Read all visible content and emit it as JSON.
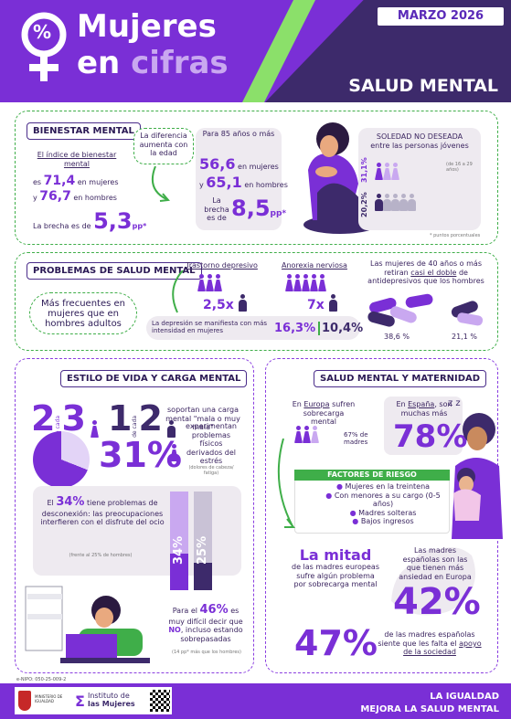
{
  "header": {
    "date": "MARZO 2026",
    "title_line1": "Mujeres",
    "title_line2_a": "en",
    "title_line2_b": "cifras",
    "section": "SALUD MENTAL",
    "logo_symbol": "%"
  },
  "bienestar": {
    "pill": "BIENESTAR MENTAL",
    "intro": "El índice de bienestar mental",
    "es": "es",
    "women_val": "71,4",
    "women_lbl": "en mujeres",
    "y": "y",
    "men_val": "76,7",
    "men_lbl": "en hombres",
    "gap_lbl": "La brecha es de",
    "gap_val": "5,3",
    "gap_unit": "pp*",
    "bubble": "La diferencia aumenta con la edad",
    "age_lbl": "Para 85 años o más",
    "w85": "56,6",
    "w85_lbl": "en mujeres",
    "y2": "y",
    "m85": "65,1",
    "m85_lbl": "en hombres",
    "gap2_lbl": "La brecha es de",
    "gap2_val": "8,5",
    "gap2_unit": "pp*",
    "soledad_title": "SOLEDAD NO DESEADA",
    "soledad_sub": "entre las personas jóvenes",
    "age_range": "(de 16 a 29 años)",
    "w_pct": "31,1%",
    "m_pct": "20,2%",
    "footnote": "* puntos porcentuales"
  },
  "problemas": {
    "pill": "PROBLEMAS DE SALUD MENTAL",
    "oval": "Más frecuentes en mujeres que en hombres adultos",
    "dep_title": "Trastorno depresivo",
    "dep_x": "2,5x",
    "ano_title": "Anorexia nerviosa",
    "ano_x": "7x",
    "dep_note": "La depresión se manifiesta con más intensidad en mujeres",
    "dep_w": "16,3%",
    "dep_m": "10,4%",
    "anti_a": "Las mujeres de 40 años o más retiran",
    "anti_b": "casi el doble",
    "anti_c": "de antidepresivos que los hombres",
    "anti_w": "38,6 %",
    "anti_m": "21,1 %"
  },
  "estilo": {
    "pill": "ESTILO DE VIDA Y CARGA MENTAL",
    "n1": "2",
    "n2": "3",
    "de_cada": "de cada",
    "n3": "1",
    "n4": "2",
    "carga": "soportan una carga mental \"mala o muy mala\"",
    "p31": "31%",
    "prob": "experimentan problemas físicos derivados del estrés",
    "prob_note": "(dolores de cabeza/ fatiga)",
    "d_a": "El",
    "d_pct": "34%",
    "d_b": "tiene problemas de desconexión: las preocupaciones interfieren con el disfrute del ocio",
    "d_note": "(frente al 25% de hombres)",
    "bar_w": 34,
    "bar_m": 25,
    "bar_w_lbl": "34%",
    "bar_m_lbl": "25%",
    "no_a": "Para el",
    "no_pct": "46%",
    "no_b": "es muy difícil decir que",
    "no_c": "NO",
    "no_d": "incluso estando sobrepasadas",
    "no_note": "(14 pp* más que los hombres)"
  },
  "maternidad": {
    "pill": "SALUD MENTAL Y MATERNIDAD",
    "eu_a": "En",
    "eu_b": "Europa",
    "eu_c": "sufren sobrecarga mental",
    "eu_pct": "67% de madres",
    "es_a": "En",
    "es_b": "España",
    "es_c": ", son muchas más",
    "es_pct": "78%",
    "risk_title": "FACTORES DE RIESGO",
    "risks": [
      "Mujeres en la treintena",
      "Con menores a su cargo (0-5 años)",
      "Madres solteras",
      "Bajos ingresos"
    ],
    "mitad": "La mitad",
    "mitad_txt": "de las madres europeas sufre algún problema por sobrecarga mental",
    "esp_txt": "Las madres españolas son las que tienen más ansiedad en Europa",
    "esp_pct": "42%",
    "p47": "47%",
    "p47_a": "de las madres españolas siente que les falta el",
    "p47_b": "apoyo de la sociedad"
  },
  "footer": {
    "nipo": "e-NIPO: 050-25-009-2",
    "ministerio": "MINISTERIO DE IGUALDAD",
    "instituto_a": "Instituto de",
    "instituto_b": "las Mujeres",
    "slogan1": "LA IGUALDAD",
    "slogan2": "MEJORA LA SALUD MENTAL"
  },
  "colors": {
    "purple": "#7a2fd6",
    "dark": "#3d2a6b",
    "green": "#3fae49",
    "lav": "#c9a8f0"
  }
}
